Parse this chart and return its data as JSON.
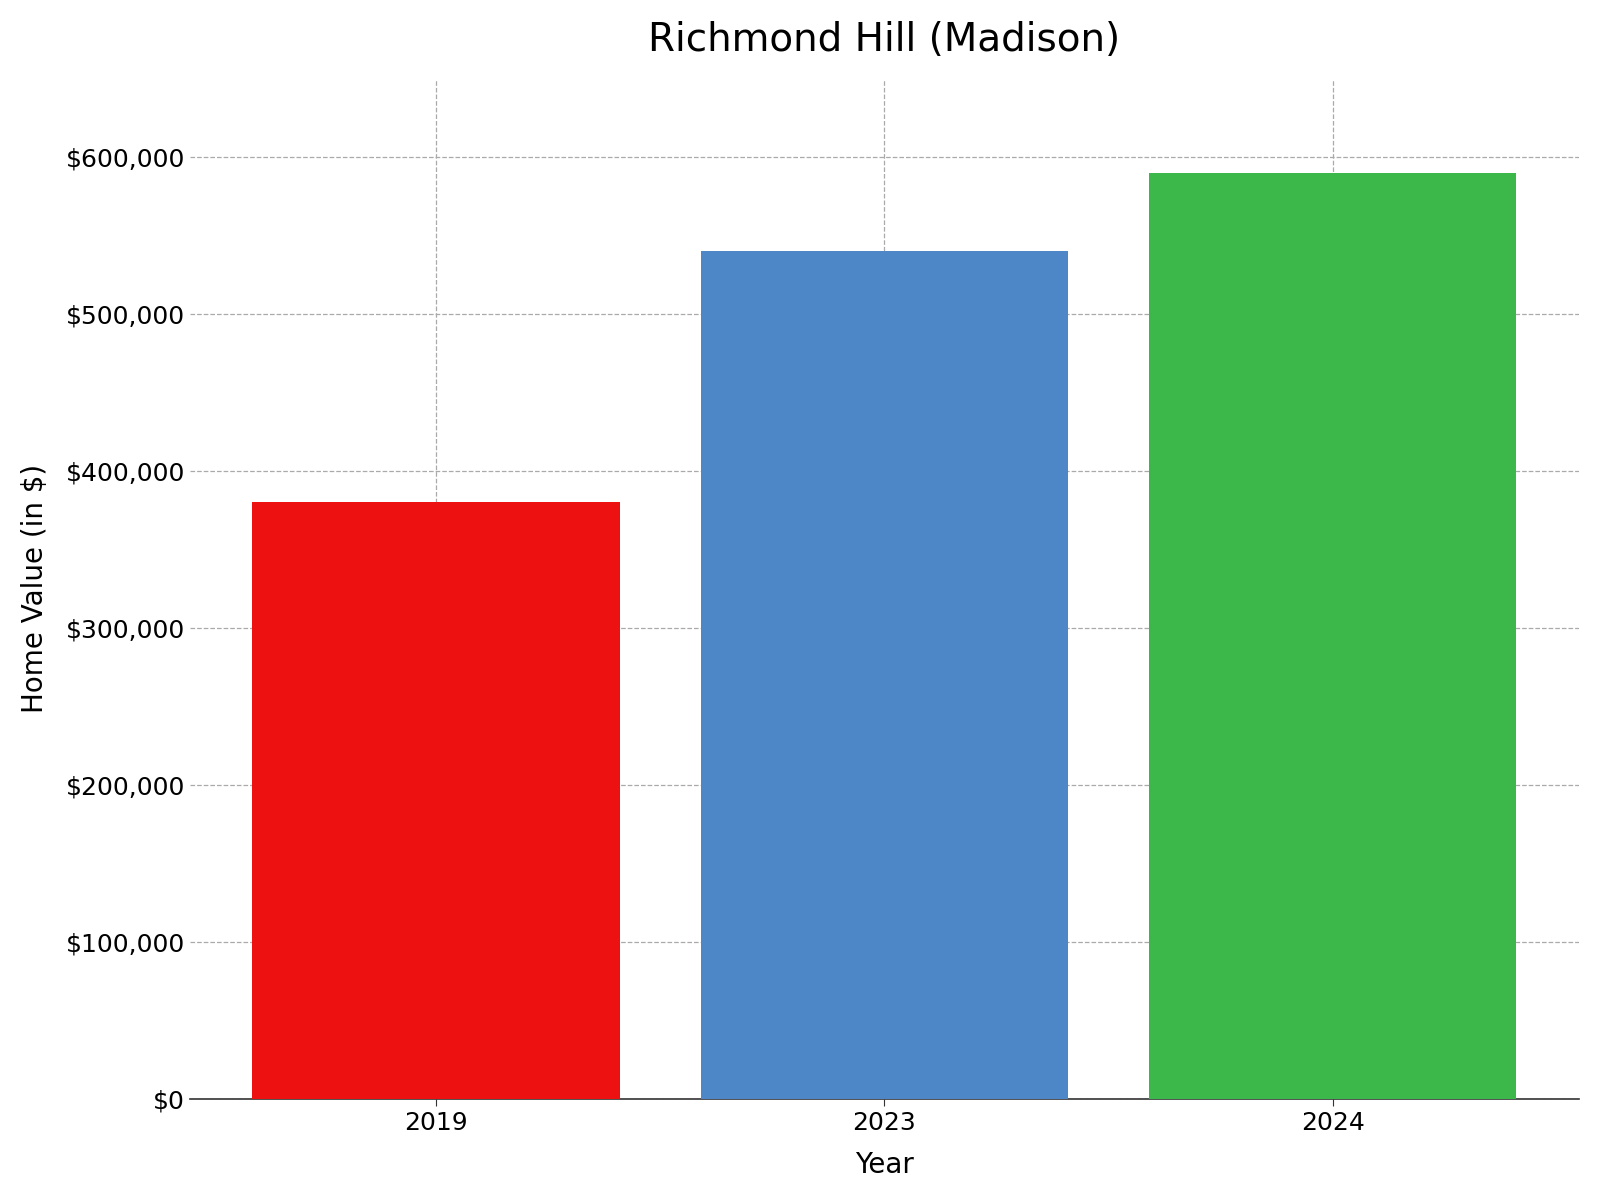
{
  "title": "Richmond Hill (Madison)",
  "categories": [
    "2019",
    "2023",
    "2024"
  ],
  "values": [
    380000,
    540000,
    590000
  ],
  "bar_colors": [
    "#ee1111",
    "#4d87c7",
    "#3cb84a"
  ],
  "xlabel": "Year",
  "ylabel": "Home Value (in $)",
  "ylim": [
    0,
    650000
  ],
  "yticks": [
    0,
    100000,
    200000,
    300000,
    400000,
    500000,
    600000
  ],
  "ytick_labels": [
    "$0",
    "$100,000",
    "$200,000",
    "$300,000",
    "$400,000",
    "$500,000",
    "$600,000"
  ],
  "title_fontsize": 28,
  "axis_label_fontsize": 20,
  "tick_fontsize": 18,
  "background_color": "#ffffff",
  "grid_color": "#aaaaaa",
  "bar_width": 0.82
}
